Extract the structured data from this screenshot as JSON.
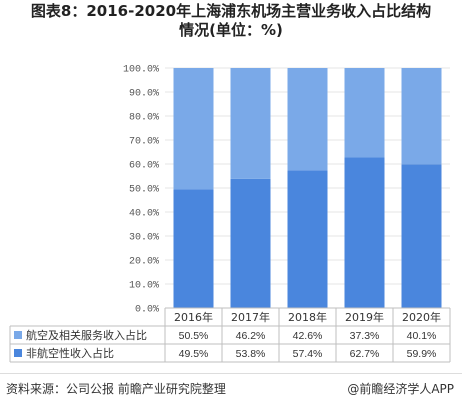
{
  "title": "图表8：2016-2020年上海浦东机场主营业务收入占比结构情况(单位：%)",
  "title_line1": "图表8：2016-2020年上海浦东机场主营业务收入占比结构",
  "title_line2": "情况(单位：%)",
  "footer": {
    "source": "资料来源：公司公报 前瞻产业研究院整理",
    "brand": "@前瞻经济学人APP"
  },
  "colors": {
    "top_series": "#7aa9e8",
    "bottom_series": "#4a86dd",
    "grid": "#e6e6e6",
    "table_line": "#bfbfbf"
  },
  "chart_data": {
    "type": "bar",
    "stacked": true,
    "percent_stacked": true,
    "categories": [
      "2016年",
      "2017年",
      "2018年",
      "2019年",
      "2020年"
    ],
    "yticks": [
      "0.0%",
      "10.0%",
      "20.0%",
      "30.0%",
      "40.0%",
      "50.0%",
      "60.0%",
      "70.0%",
      "80.0%",
      "90.0%",
      "100.0%"
    ],
    "ylim": [
      0,
      100
    ],
    "series": [
      {
        "name": "非航空性收入占比",
        "values": [
          49.5,
          53.8,
          57.4,
          62.7,
          59.9
        ],
        "labels": [
          "49.5%",
          "53.8%",
          "57.4%",
          "62.7%",
          "59.9%"
        ],
        "color": "#4a86dd"
      },
      {
        "name": "航空及相关服务收入占比",
        "values": [
          50.5,
          46.2,
          42.6,
          37.3,
          40.1
        ],
        "labels": [
          "50.5%",
          "46.2%",
          "42.6%",
          "37.3%",
          "40.1%"
        ],
        "color": "#7aa9e8"
      }
    ],
    "table_rows": [
      "航空及相关服务收入占比",
      "非航空性收入占比"
    ],
    "legend_position": "data-table-left"
  }
}
